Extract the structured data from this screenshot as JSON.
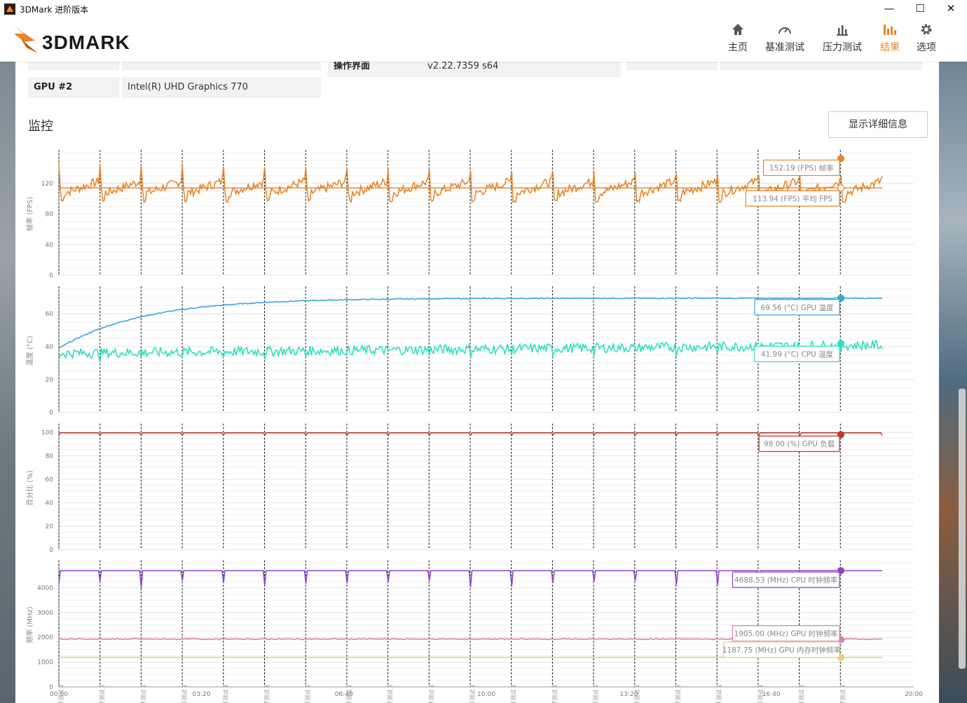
{
  "window": {
    "title": "3DMark 进阶版本",
    "controls": {
      "minimize": "—",
      "maximize": "☐",
      "close": "✕"
    }
  },
  "logo_text": "3DMARK",
  "nav": [
    {
      "label": "主页",
      "icon": "home-icon"
    },
    {
      "label": "基准测试",
      "icon": "gauge-icon"
    },
    {
      "label": "压力测试",
      "icon": "bar-chart-icon"
    },
    {
      "label": "结果",
      "icon": "results-icon",
      "active": true
    },
    {
      "label": "选项",
      "icon": "gear-icon"
    }
  ],
  "colors": {
    "accent": "#e8862a",
    "fps": "#e8862a",
    "gpu_temp": "#3aa8dc",
    "cpu_temp": "#2fe0c0",
    "gpu_load": "#c0392b",
    "cpu_clock": "#8e44c9",
    "gpu_clock": "#e07ab0",
    "gpu_mem_clock": "#e8d07a"
  },
  "info": {
    "gpu2_label": "GPU #2",
    "gpu2_value": "Intel(R) UHD Graphics 770",
    "ui_label": "操作界面",
    "ui_value": "v2.22.7359 s64"
  },
  "monitor": {
    "title": "监控",
    "detail_button": "显示详细信息"
  },
  "chart_data": [
    {
      "type": "line",
      "ylabel": "帧率 (FPS)",
      "yticks": [
        0,
        40,
        80,
        120
      ],
      "ylim": [
        0,
        160
      ],
      "series": [
        {
          "name": "帧率",
          "unit": "FPS",
          "current": "152.19",
          "pattern": "sawtooth",
          "base": 113,
          "amp": 38
        },
        {
          "name": "平均 FPS",
          "unit": "FPS",
          "current": "113.94",
          "pattern": "flat",
          "base": 113.94
        }
      ]
    },
    {
      "type": "line",
      "ylabel": "温度 (°C)",
      "yticks": [
        0,
        20,
        40,
        60
      ],
      "ylim": [
        0,
        75
      ],
      "series": [
        {
          "name": "GPU 温度",
          "unit": "°C",
          "current": "69.56",
          "pattern": "warmup",
          "start": 39,
          "base": 69.5
        },
        {
          "name": "CPU 温度",
          "unit": "°C",
          "current": "41.99",
          "pattern": "noisy",
          "base": 40
        }
      ]
    },
    {
      "type": "line",
      "ylabel": "百分比 (%)",
      "yticks": [
        0,
        20,
        40,
        60,
        80,
        100
      ],
      "ylim": [
        0,
        105
      ],
      "series": [
        {
          "name": "GPU 负载",
          "unit": "%",
          "current": "98.00",
          "pattern": "flat",
          "base": 99.5
        }
      ]
    },
    {
      "type": "line",
      "ylabel": "频率 (MHz)",
      "yticks": [
        0,
        1000,
        2000,
        3000,
        4000
      ],
      "ylim": [
        0,
        5000
      ],
      "series": [
        {
          "name": "CPU 时钟频率",
          "unit": "MHz",
          "current": "4688.53",
          "pattern": "dips",
          "base": 4688
        },
        {
          "name": "GPU 时钟频率",
          "unit": "MHz",
          "current": "1905.00",
          "pattern": "flat",
          "base": 1930
        },
        {
          "name": "GPU 内存时钟频率",
          "unit": "MHz",
          "current": "1187.75",
          "pattern": "flat",
          "base": 1188
        }
      ]
    }
  ],
  "xaxis": {
    "ticks": [
      "00:00",
      "03:20",
      "06:40",
      "10:00",
      "13:20",
      "16:40",
      "20:00"
    ],
    "xlim_seconds": [
      0,
      1200
    ],
    "loop_count": 20,
    "loop_marker_label": "循环测试 1"
  }
}
